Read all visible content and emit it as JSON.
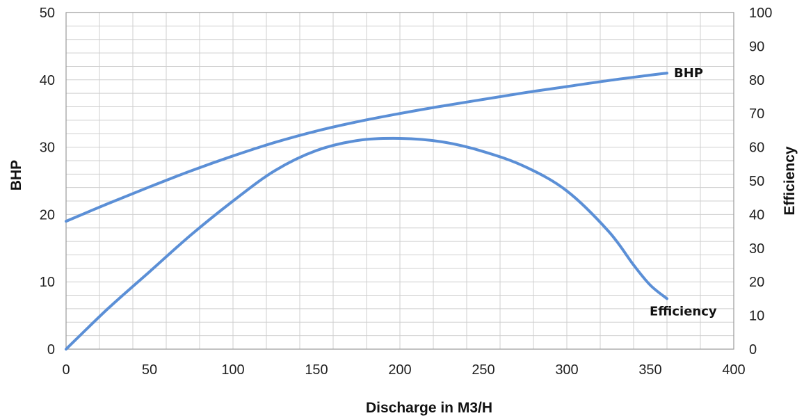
{
  "chart_data": {
    "type": "line",
    "xlabel": "Discharge in M3/H",
    "ylabel": "BHP",
    "y2label": "Efficiency",
    "xlim": [
      0,
      400
    ],
    "ylim": [
      0,
      50
    ],
    "y2lim": [
      0,
      100
    ],
    "xticks": [
      "0",
      "50",
      "100",
      "150",
      "200",
      "250",
      "300",
      "350",
      "400"
    ],
    "yticks": [
      "0",
      "10",
      "20",
      "30",
      "40",
      "50"
    ],
    "y2ticks": [
      "0",
      "10",
      "20",
      "30",
      "40",
      "50",
      "60",
      "70",
      "80",
      "90",
      "100"
    ],
    "grid": true,
    "line_color": "#5b8fd6",
    "series": [
      {
        "name": "BHP",
        "axis": "left",
        "x": [
          0,
          25,
          50,
          75,
          100,
          125,
          150,
          175,
          200,
          225,
          250,
          275,
          300,
          325,
          350,
          360
        ],
        "values": [
          19,
          21.6,
          24.1,
          26.5,
          28.7,
          30.7,
          32.4,
          33.8,
          35,
          36.1,
          37.1,
          38.1,
          39,
          39.9,
          40.7,
          41
        ]
      },
      {
        "name": "Efficiency",
        "axis": "right",
        "x": [
          0,
          25,
          50,
          75,
          100,
          125,
          150,
          175,
          200,
          225,
          250,
          275,
          300,
          325,
          340,
          350,
          360
        ],
        "values": [
          0,
          12,
          23,
          34,
          44,
          53,
          59,
          62,
          62.6,
          61.6,
          58.7,
          54.2,
          47,
          35,
          25,
          19,
          15
        ]
      }
    ]
  }
}
